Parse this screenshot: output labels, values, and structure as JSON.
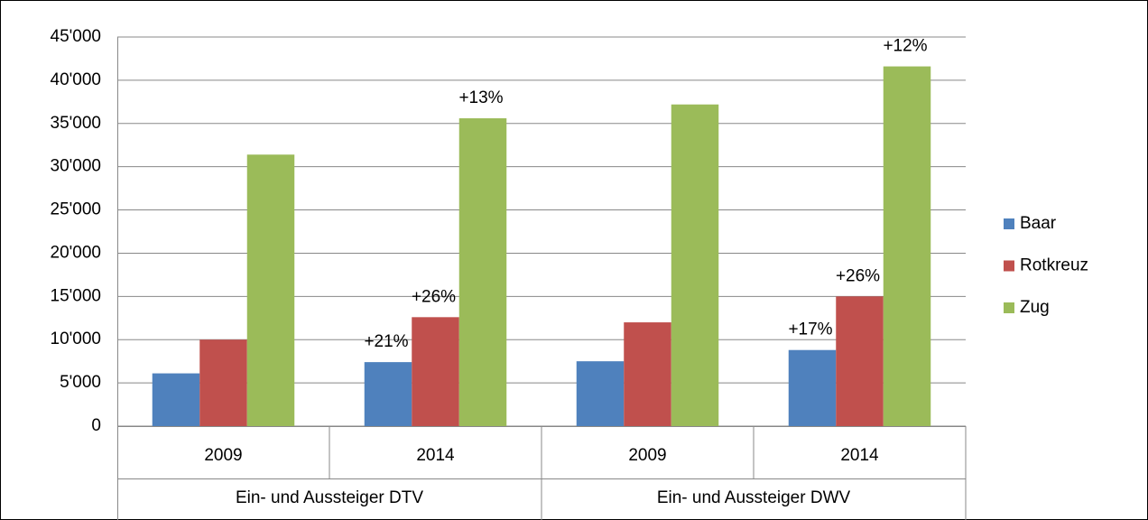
{
  "chart_data": {
    "type": "bar",
    "categories": [
      "2009",
      "2014",
      "2009",
      "2014"
    ],
    "group_labels": [
      "Ein- und Aussteiger DTV",
      "Ein- und Aussteiger DWV"
    ],
    "series": [
      {
        "name": "Baar",
        "color": "#4f81bd",
        "values": [
          6100,
          7400,
          7500,
          8800
        ],
        "annotations": [
          null,
          "+21%",
          null,
          "+17%"
        ]
      },
      {
        "name": "Rotkreuz",
        "color": "#c0504d",
        "values": [
          10000,
          12600,
          12000,
          15000
        ],
        "annotations": [
          null,
          "+26%",
          null,
          "+26%"
        ]
      },
      {
        "name": "Zug",
        "color": "#9bbb59",
        "values": [
          31400,
          35600,
          37200,
          41600
        ],
        "annotations": [
          null,
          "+13%",
          null,
          "+12%"
        ]
      }
    ],
    "ylim": [
      0,
      45000
    ],
    "yticks": [
      0,
      {
        "value": 5000,
        "label": "5'000"
      },
      {
        "value": 10000,
        "label": "10'000"
      },
      {
        "value": 15000,
        "label": "15'000"
      },
      {
        "value": 20000,
        "label": "20'000"
      },
      {
        "value": 25000,
        "label": "25'000"
      },
      {
        "value": 30000,
        "label": "30'000"
      },
      {
        "value": 35000,
        "label": "35'000"
      },
      {
        "value": 40000,
        "label": "40'000"
      },
      {
        "value": 45000,
        "label": "45'000"
      }
    ],
    "grid": true,
    "legend": "right"
  }
}
